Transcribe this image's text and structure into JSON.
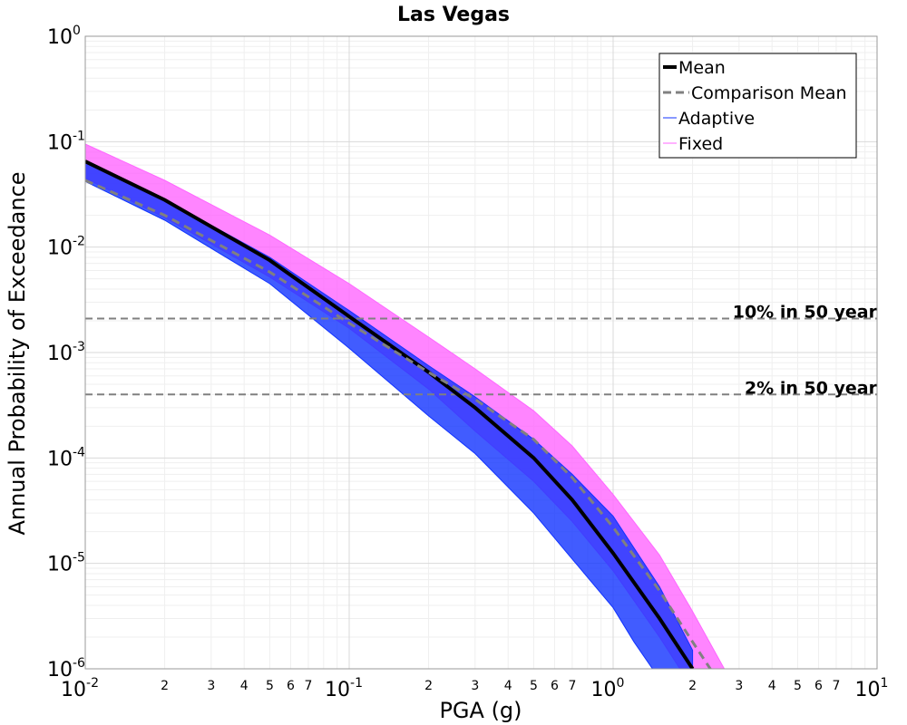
{
  "chart_data": {
    "type": "line",
    "title": "Las Vegas",
    "xlabel": "PGA (g)",
    "ylabel": "Annual Probability of Exceedance",
    "xscale": "log",
    "yscale": "log",
    "xlim": [
      0.01,
      10
    ],
    "ylim": [
      1e-06,
      1
    ],
    "grid": true,
    "legend_position": "top-right",
    "x_major_ticks": [
      {
        "base": "10",
        "exp": "-2"
      },
      {
        "base": "10",
        "exp": "-1"
      },
      {
        "base": "10",
        "exp": "0"
      },
      {
        "base": "10",
        "exp": "1"
      }
    ],
    "y_major_ticks": [
      {
        "base": "10",
        "exp": "0"
      },
      {
        "base": "10",
        "exp": "-1"
      },
      {
        "base": "10",
        "exp": "-2"
      },
      {
        "base": "10",
        "exp": "-3"
      },
      {
        "base": "10",
        "exp": "-4"
      },
      {
        "base": "10",
        "exp": "-5"
      },
      {
        "base": "10",
        "exp": "-6"
      }
    ],
    "x_minor_tick_labels": [
      "2",
      "3",
      "4",
      "5",
      "6",
      "7"
    ],
    "series": [
      {
        "name": "Mean",
        "style": "solid-thick",
        "color": "#000000",
        "x": [
          0.01,
          0.02,
          0.05,
          0.1,
          0.2,
          0.3,
          0.5,
          0.7,
          1.0,
          1.5,
          2.0
        ],
        "y": [
          0.065,
          0.028,
          0.0075,
          0.0022,
          0.00065,
          0.0003,
          0.0001,
          4e-05,
          1.25e-05,
          3e-06,
          1e-06
        ]
      },
      {
        "name": "Comparison Mean",
        "style": "dashed",
        "color": "#808080",
        "x": [
          0.01,
          0.02,
          0.05,
          0.1,
          0.2,
          0.3,
          0.5,
          0.7,
          1.0,
          1.5,
          2.0,
          2.4
        ],
        "y": [
          0.043,
          0.02,
          0.0058,
          0.0019,
          0.00065,
          0.00036,
          0.00015,
          6.5e-05,
          2.2e-05,
          5.5e-06,
          1.8e-06,
          9e-07
        ]
      }
    ],
    "bands": [
      {
        "name": "Fixed",
        "color": "#ff66ff",
        "x": [
          0.01,
          0.02,
          0.05,
          0.1,
          0.2,
          0.3,
          0.5,
          0.7,
          1.0,
          1.5,
          2.0,
          2.7
        ],
        "lower": [
          0.045,
          0.019,
          0.0052,
          0.0017,
          0.00045,
          0.00018,
          6e-05,
          2.5e-05,
          8.5e-06,
          2e-06,
          6.5e-07,
          2e-07
        ],
        "upper": [
          0.095,
          0.043,
          0.013,
          0.0045,
          0.0014,
          0.0007,
          0.00028,
          0.00013,
          4.5e-05,
          1.2e-05,
          3.5e-06,
          9e-07
        ]
      },
      {
        "name": "Adaptive",
        "color": "#1133ff",
        "x": [
          0.01,
          0.02,
          0.05,
          0.1,
          0.2,
          0.3,
          0.5,
          0.7,
          1.0,
          1.2,
          1.5,
          2.0
        ],
        "lower": [
          0.042,
          0.018,
          0.0045,
          0.0011,
          0.00025,
          0.00011,
          3e-05,
          1.1e-05,
          3.8e-06,
          1.8e-06,
          8e-07,
          2e-07
        ],
        "upper": [
          0.065,
          0.028,
          0.008,
          0.0025,
          0.00075,
          0.00038,
          0.00015,
          7e-05,
          2.8e-05,
          1.4e-05,
          6e-06,
          1.5e-06
        ]
      }
    ],
    "reference_lines": [
      {
        "label": "10% in 50 year",
        "y": 0.0021
      },
      {
        "label": "2% in 50 year",
        "y": 0.0004
      }
    ],
    "legend": [
      "Mean",
      "Comparison Mean",
      "Adaptive",
      "Fixed"
    ]
  }
}
